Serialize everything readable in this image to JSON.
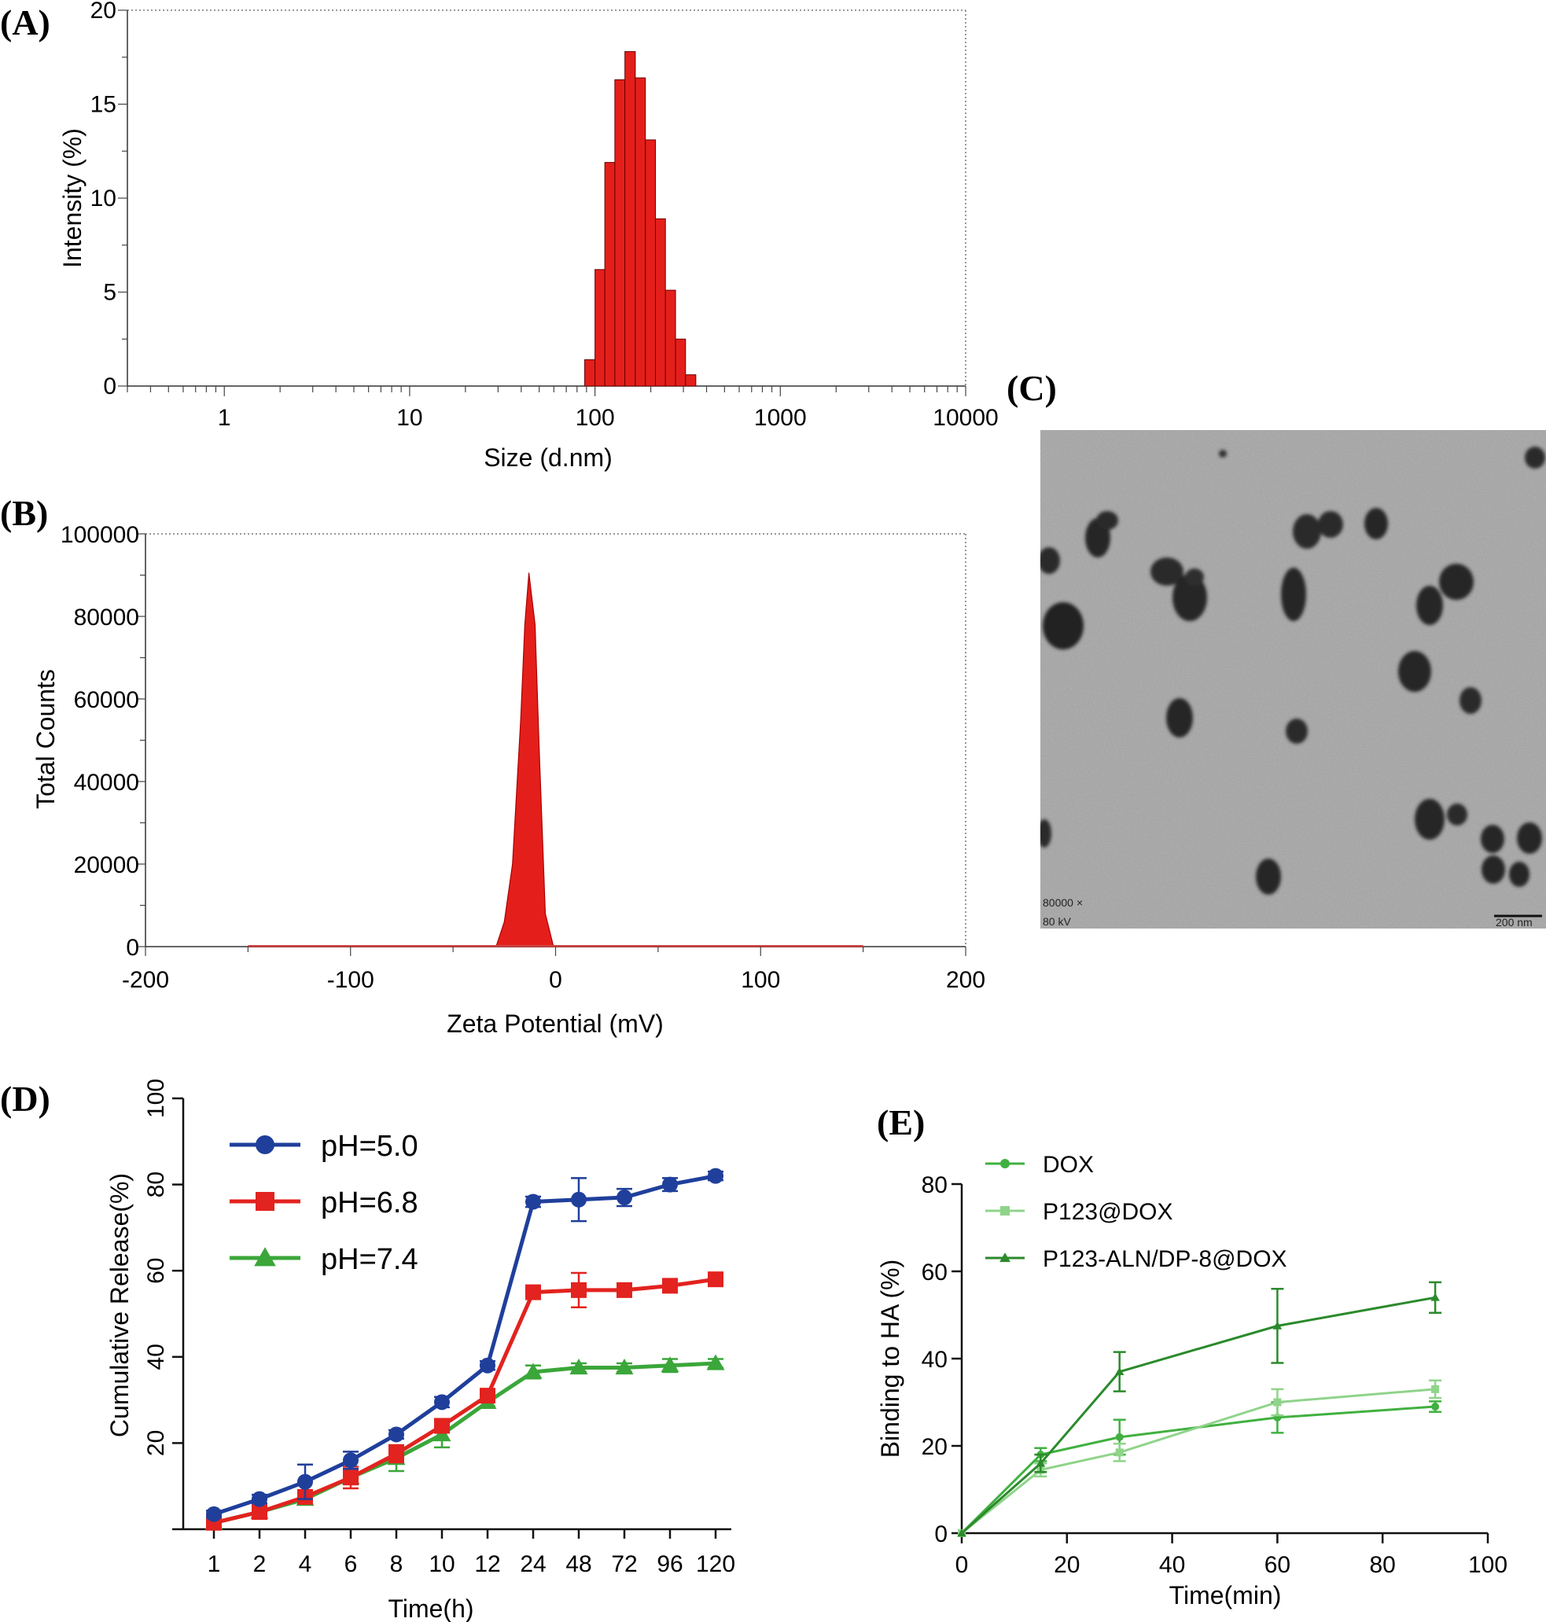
{
  "colors": {
    "bar_red": "#e41f1b",
    "ph50": "#1f3f9b",
    "ph68": "#e2231f",
    "ph74": "#3ba63a",
    "dox": "#40b040",
    "p123dox": "#8fd48a",
    "p123aln": "#2b8a2b",
    "tem_bg": "#a6a6a6",
    "particle": "#252525"
  },
  "chart_data": [
    {
      "id": "A",
      "panel_label": "(A)",
      "type": "bar",
      "xscale": "log",
      "xlabel": "Size (d.nm)",
      "ylabel": "Intensity (%)",
      "xlim": [
        0.3,
        10000
      ],
      "ylim": [
        0,
        20
      ],
      "xticks": [
        1,
        10,
        100,
        1000,
        10000
      ],
      "xtick_labels": [
        "1",
        "10",
        "100",
        "1000",
        "10000"
      ],
      "yticks": [
        0,
        5,
        10,
        15,
        20
      ],
      "ytick_labels": [
        "0",
        "5",
        "10",
        "15",
        "20"
      ],
      "bins": [
        {
          "lo": 88,
          "hi": 100,
          "value": 1.4
        },
        {
          "lo": 100,
          "hi": 113,
          "value": 6.2
        },
        {
          "lo": 113,
          "hi": 128,
          "value": 11.9
        },
        {
          "lo": 128,
          "hi": 145,
          "value": 16.3
        },
        {
          "lo": 145,
          "hi": 165,
          "value": 17.8
        },
        {
          "lo": 165,
          "hi": 187,
          "value": 16.4
        },
        {
          "lo": 187,
          "hi": 212,
          "value": 13.1
        },
        {
          "lo": 212,
          "hi": 240,
          "value": 8.9
        },
        {
          "lo": 240,
          "hi": 272,
          "value": 5.1
        },
        {
          "lo": 272,
          "hi": 308,
          "value": 2.5
        },
        {
          "lo": 308,
          "hi": 350,
          "value": 0.6
        }
      ]
    },
    {
      "id": "B",
      "panel_label": "(B)",
      "type": "area",
      "xlabel": "Zeta Potential (mV)",
      "ylabel": "Total Counts",
      "xlim": [
        -200,
        200
      ],
      "ylim": [
        0,
        100000
      ],
      "xticks": [
        -200,
        -100,
        0,
        100,
        200
      ],
      "xtick_labels": [
        "-200",
        "-100",
        "0",
        "100",
        "200"
      ],
      "yticks": [
        0,
        20000,
        40000,
        60000,
        80000,
        100000
      ],
      "ytick_labels": [
        "0",
        "20000",
        "40000",
        "60000",
        "80000",
        "100000"
      ],
      "points": [
        {
          "x": -150,
          "y": 0
        },
        {
          "x": -29,
          "y": 0
        },
        {
          "x": -25,
          "y": 6000
        },
        {
          "x": -21,
          "y": 20000
        },
        {
          "x": -17,
          "y": 55000
        },
        {
          "x": -15,
          "y": 78000
        },
        {
          "x": -13,
          "y": 90500
        },
        {
          "x": -10,
          "y": 78000
        },
        {
          "x": -8,
          "y": 48000
        },
        {
          "x": -5,
          "y": 8000
        },
        {
          "x": -1,
          "y": 0
        },
        {
          "x": 150,
          "y": 0
        }
      ]
    },
    {
      "id": "D",
      "panel_label": "(D)",
      "type": "line",
      "xlabel": "Time(h)",
      "ylabel": "Cumulative Release(%)",
      "categories": [
        "1",
        "2",
        "4",
        "6",
        "8",
        "10",
        "12",
        "24",
        "48",
        "72",
        "96",
        "120"
      ],
      "ylim": [
        0,
        100
      ],
      "yticks": [
        20,
        40,
        60,
        80,
        100
      ],
      "ytick_labels": [
        "20",
        "40",
        "60",
        "80",
        "100"
      ],
      "series": [
        {
          "name": "pH=5.0",
          "marker": "circle",
          "values": [
            3.5,
            7,
            11,
            16,
            22,
            29.5,
            38,
            76,
            76.5,
            77,
            80,
            82
          ],
          "errors": [
            0.8,
            1,
            4,
            2,
            1,
            1.2,
            1,
            1.2,
            5,
            2,
            1.5,
            1
          ]
        },
        {
          "name": "pH=6.8",
          "marker": "square",
          "values": [
            1.5,
            4,
            7.5,
            12,
            17.5,
            24,
            31,
            55,
            55.5,
            55.5,
            56.5,
            58
          ],
          "errors": [
            0.5,
            0.8,
            1.5,
            2.5,
            2,
            1.2,
            1,
            1.5,
            4,
            1,
            1,
            1
          ]
        },
        {
          "name": "pH=7.4",
          "marker": "triangle",
          "values": [
            1.5,
            4,
            7,
            12,
            16.5,
            22,
            29.5,
            36.5,
            37.5,
            37.5,
            38,
            38.5
          ],
          "errors": [
            0.5,
            0.5,
            1,
            1.5,
            3,
            3,
            1,
            1.5,
            1,
            1,
            1.5,
            1
          ]
        }
      ]
    },
    {
      "id": "E",
      "panel_label": "(E)",
      "type": "line",
      "xlabel": "Time(min)",
      "ylabel": "Binding to HA (%)",
      "xlim": [
        0,
        100
      ],
      "ylim": [
        0,
        80
      ],
      "xticks": [
        0,
        20,
        40,
        60,
        80,
        100
      ],
      "xtick_labels": [
        "0",
        "20",
        "40",
        "60",
        "80",
        "100"
      ],
      "yticks": [
        0,
        20,
        40,
        60,
        80
      ],
      "ytick_labels": [
        "0",
        "20",
        "40",
        "60",
        "80"
      ],
      "x": [
        0,
        15,
        30,
        60,
        90
      ],
      "series": [
        {
          "name": "DOX",
          "marker": "circle",
          "values": [
            0,
            18,
            22,
            26.5,
            29
          ],
          "errors": [
            0,
            1.5,
            4,
            3.5,
            1.2
          ]
        },
        {
          "name": "P123@DOX",
          "marker": "square",
          "values": [
            0,
            14.5,
            18.5,
            30,
            33
          ],
          "errors": [
            0,
            1.5,
            2,
            3,
            2
          ]
        },
        {
          "name": "P123-ALN/DP-8@DOX",
          "marker": "triangle",
          "values": [
            0,
            16,
            37,
            47.5,
            54
          ],
          "errors": [
            0,
            2,
            4.5,
            8.5,
            3.5
          ]
        }
      ]
    }
  ],
  "panel_c": {
    "panel_label": "(C)",
    "magnification": "80000 ×",
    "voltage": "80 kV",
    "scale_bar": "200 nm"
  }
}
